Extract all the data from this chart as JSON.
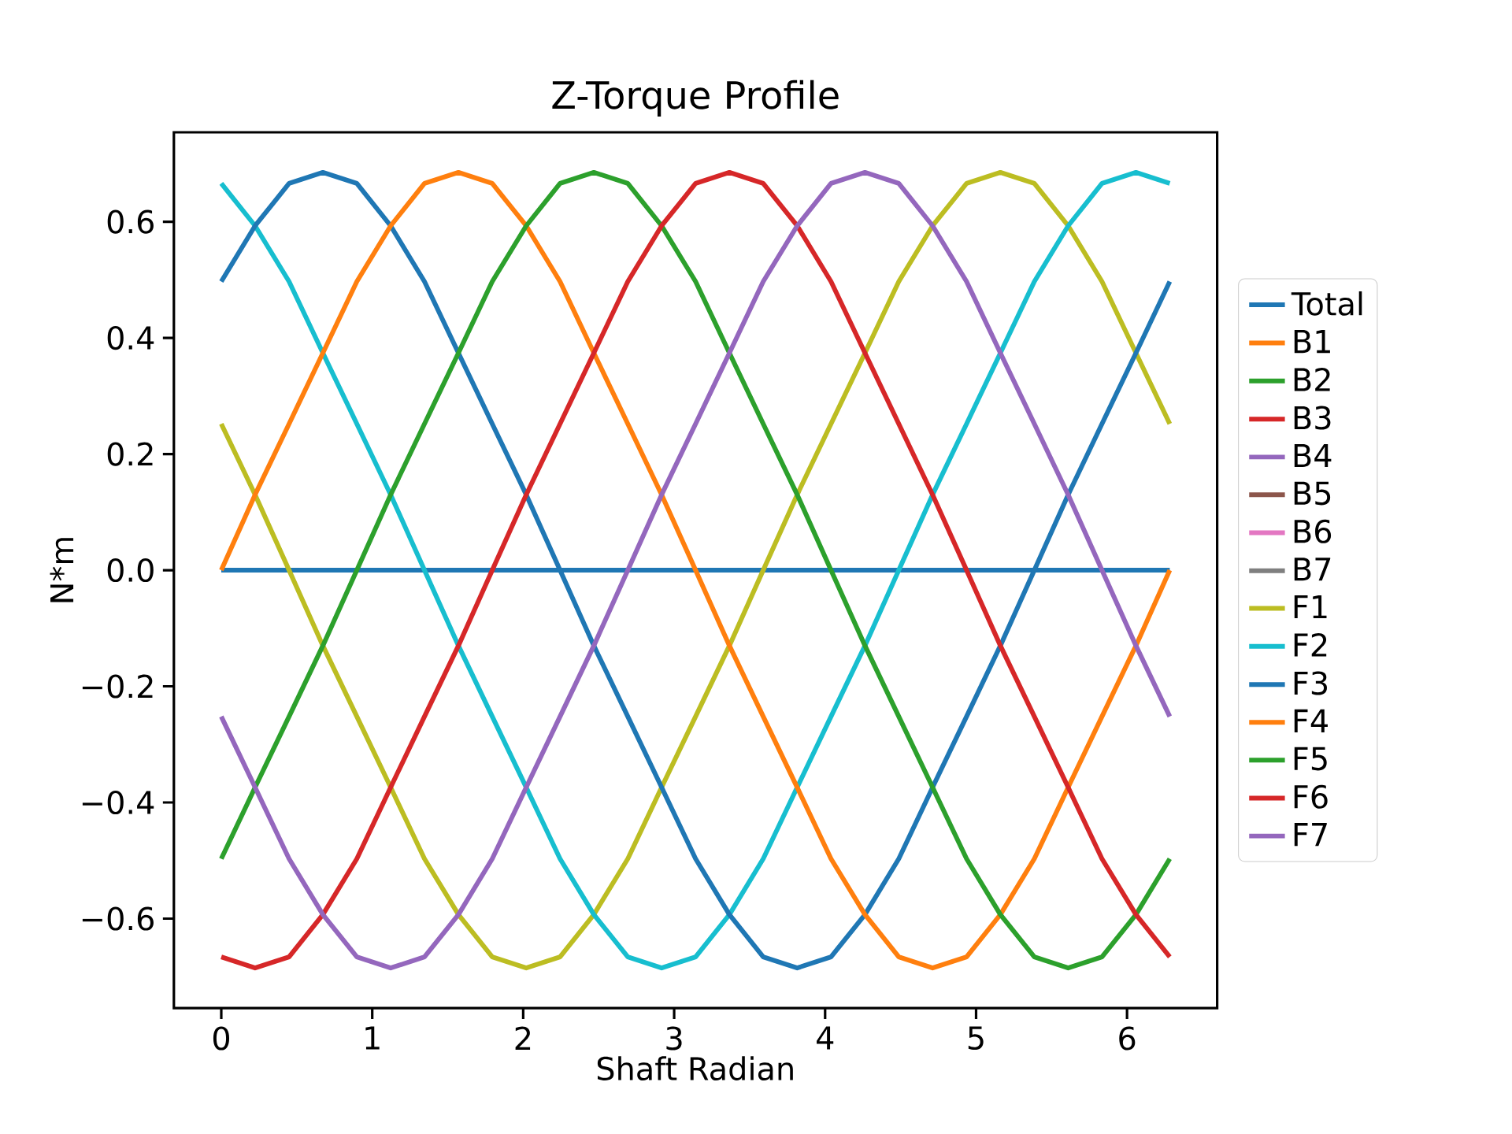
{
  "chart_data": {
    "type": "line",
    "title": "Z-Torque Profile",
    "xlabel": "Shaft Radian",
    "ylabel": "N*m",
    "x": [
      0,
      0.224,
      0.449,
      0.673,
      0.898,
      1.122,
      1.346,
      1.571,
      1.795,
      2.02,
      2.244,
      2.468,
      2.693,
      2.917,
      3.142,
      3.366,
      3.59,
      3.815,
      4.039,
      4.264,
      4.488,
      4.712,
      4.937,
      5.161,
      5.386,
      5.61,
      5.834,
      6.059,
      6.283
    ],
    "xlim": [
      -0.314,
      6.597
    ],
    "ylim": [
      -0.754,
      0.754
    ],
    "xticks": [
      0,
      1,
      2,
      3,
      4,
      5,
      6
    ],
    "yticks": [
      {
        "value": -0.6,
        "label": "−0.6"
      },
      {
        "value": -0.4,
        "label": "−0.4"
      },
      {
        "value": -0.2,
        "label": "−0.2"
      },
      {
        "value": 0,
        "label": "0.0"
      },
      {
        "value": 0.2,
        "label": "0.2"
      },
      {
        "value": 0.4,
        "label": "0.4"
      },
      {
        "value": 0.6,
        "label": "0.6"
      }
    ],
    "legend": "right",
    "marker": "none",
    "series": [
      {
        "name": "Total",
        "color": "#1f77b4",
        "values": [
          0,
          0,
          0,
          0,
          0,
          0,
          0,
          0,
          0,
          0,
          0,
          0,
          0,
          0,
          0,
          0,
          0,
          0,
          0,
          0,
          0,
          0,
          0,
          0,
          0,
          0,
          0,
          0,
          0
        ]
      },
      {
        "name": "B1",
        "color": "#ff7f0e",
        "values": [
          null,
          null,
          null,
          null,
          null,
          null,
          null,
          null,
          null,
          null,
          null,
          null,
          null,
          null,
          null,
          null,
          null,
          null,
          null,
          null,
          null,
          null,
          null,
          null,
          null,
          null,
          null,
          null,
          null
        ]
      },
      {
        "name": "B2",
        "color": "#2ca02c",
        "values": [
          null,
          null,
          null,
          null,
          null,
          null,
          null,
          null,
          null,
          null,
          null,
          null,
          null,
          null,
          null,
          null,
          null,
          null,
          null,
          null,
          null,
          null,
          null,
          null,
          null,
          null,
          null,
          null,
          null
        ]
      },
      {
        "name": "B3",
        "color": "#d62728",
        "values": [
          null,
          null,
          null,
          null,
          null,
          null,
          null,
          null,
          null,
          null,
          null,
          null,
          null,
          null,
          null,
          null,
          null,
          null,
          null,
          null,
          null,
          null,
          null,
          null,
          null,
          null,
          null,
          null,
          null
        ]
      },
      {
        "name": "B4",
        "color": "#9467bd",
        "values": [
          null,
          null,
          null,
          null,
          null,
          null,
          null,
          null,
          null,
          null,
          null,
          null,
          null,
          null,
          null,
          null,
          null,
          null,
          null,
          null,
          null,
          null,
          null,
          null,
          null,
          null,
          null,
          null,
          null
        ]
      },
      {
        "name": "B5",
        "color": "#8c564b",
        "values": [
          null,
          null,
          null,
          null,
          null,
          null,
          null,
          null,
          null,
          null,
          null,
          null,
          null,
          null,
          null,
          null,
          null,
          null,
          null,
          null,
          null,
          null,
          null,
          null,
          null,
          null,
          null,
          null,
          null
        ]
      },
      {
        "name": "B6",
        "color": "#e377c2",
        "values": [
          null,
          null,
          null,
          null,
          null,
          null,
          null,
          null,
          null,
          null,
          null,
          null,
          null,
          null,
          null,
          null,
          null,
          null,
          null,
          null,
          null,
          null,
          null,
          null,
          null,
          null,
          null,
          null,
          null
        ]
      },
      {
        "name": "B7",
        "color": "#7f7f7f",
        "values": [
          null,
          null,
          null,
          null,
          null,
          null,
          null,
          null,
          null,
          null,
          null,
          null,
          null,
          null,
          null,
          null,
          null,
          null,
          null,
          null,
          null,
          null,
          null,
          null,
          null,
          null,
          null,
          null,
          null
        ]
      },
      {
        "name": "F1",
        "color": "#bcbd22",
        "values": [
          0.252,
          0.13,
          0,
          -0.13,
          -0.252,
          -0.374,
          -0.497,
          -0.593,
          -0.666,
          -0.685,
          -0.666,
          -0.593,
          -0.497,
          -0.374,
          -0.252,
          -0.13,
          0,
          0.13,
          0.252,
          0.374,
          0.497,
          0.593,
          0.666,
          0.685,
          0.666,
          0.593,
          0.497,
          0.374,
          0.252
        ]
      },
      {
        "name": "F2",
        "color": "#17becf",
        "values": [
          0.666,
          0.593,
          0.497,
          0.374,
          0.252,
          0.13,
          0,
          -0.13,
          -0.252,
          -0.374,
          -0.497,
          -0.593,
          -0.666,
          -0.685,
          -0.666,
          -0.593,
          -0.497,
          -0.374,
          -0.252,
          -0.13,
          0,
          0.13,
          0.252,
          0.374,
          0.497,
          0.593,
          0.666,
          0.685,
          0.666
        ]
      },
      {
        "name": "F3",
        "color": "#1f77b4",
        "values": [
          0.497,
          0.593,
          0.666,
          0.685,
          0.666,
          0.593,
          0.497,
          0.374,
          0.252,
          0.13,
          0,
          -0.13,
          -0.252,
          -0.374,
          -0.497,
          -0.593,
          -0.666,
          -0.685,
          -0.666,
          -0.593,
          -0.497,
          -0.374,
          -0.252,
          -0.13,
          0,
          0.13,
          0.252,
          0.374,
          0.497
        ]
      },
      {
        "name": "F4",
        "color": "#ff7f0e",
        "values": [
          0,
          0.13,
          0.252,
          0.374,
          0.497,
          0.593,
          0.666,
          0.685,
          0.666,
          0.593,
          0.497,
          0.374,
          0.252,
          0.13,
          0,
          -0.13,
          -0.252,
          -0.374,
          -0.497,
          -0.593,
          -0.666,
          -0.685,
          -0.666,
          -0.593,
          -0.497,
          -0.374,
          -0.252,
          -0.13,
          0
        ]
      },
      {
        "name": "F5",
        "color": "#2ca02c",
        "values": [
          -0.497,
          -0.374,
          -0.252,
          -0.13,
          0,
          0.13,
          0.252,
          0.374,
          0.497,
          0.593,
          0.666,
          0.685,
          0.666,
          0.593,
          0.497,
          0.374,
          0.252,
          0.13,
          0,
          -0.13,
          -0.252,
          -0.374,
          -0.497,
          -0.593,
          -0.666,
          -0.685,
          -0.666,
          -0.593,
          -0.497
        ]
      },
      {
        "name": "F6",
        "color": "#d62728",
        "values": [
          -0.666,
          -0.685,
          -0.666,
          -0.593,
          -0.497,
          -0.374,
          -0.252,
          -0.13,
          0,
          0.13,
          0.252,
          0.374,
          0.497,
          0.593,
          0.666,
          0.685,
          0.666,
          0.593,
          0.497,
          0.374,
          0.252,
          0.13,
          0,
          -0.13,
          -0.252,
          -0.374,
          -0.497,
          -0.593,
          -0.666
        ]
      },
      {
        "name": "F7",
        "color": "#9467bd",
        "values": [
          -0.252,
          -0.374,
          -0.497,
          -0.593,
          -0.666,
          -0.685,
          -0.666,
          -0.593,
          -0.497,
          -0.374,
          -0.252,
          -0.13,
          0,
          0.13,
          0.252,
          0.374,
          0.497,
          0.593,
          0.666,
          0.685,
          0.666,
          0.593,
          0.497,
          0.374,
          0.252,
          0.13,
          0,
          -0.13,
          -0.252
        ]
      }
    ]
  }
}
